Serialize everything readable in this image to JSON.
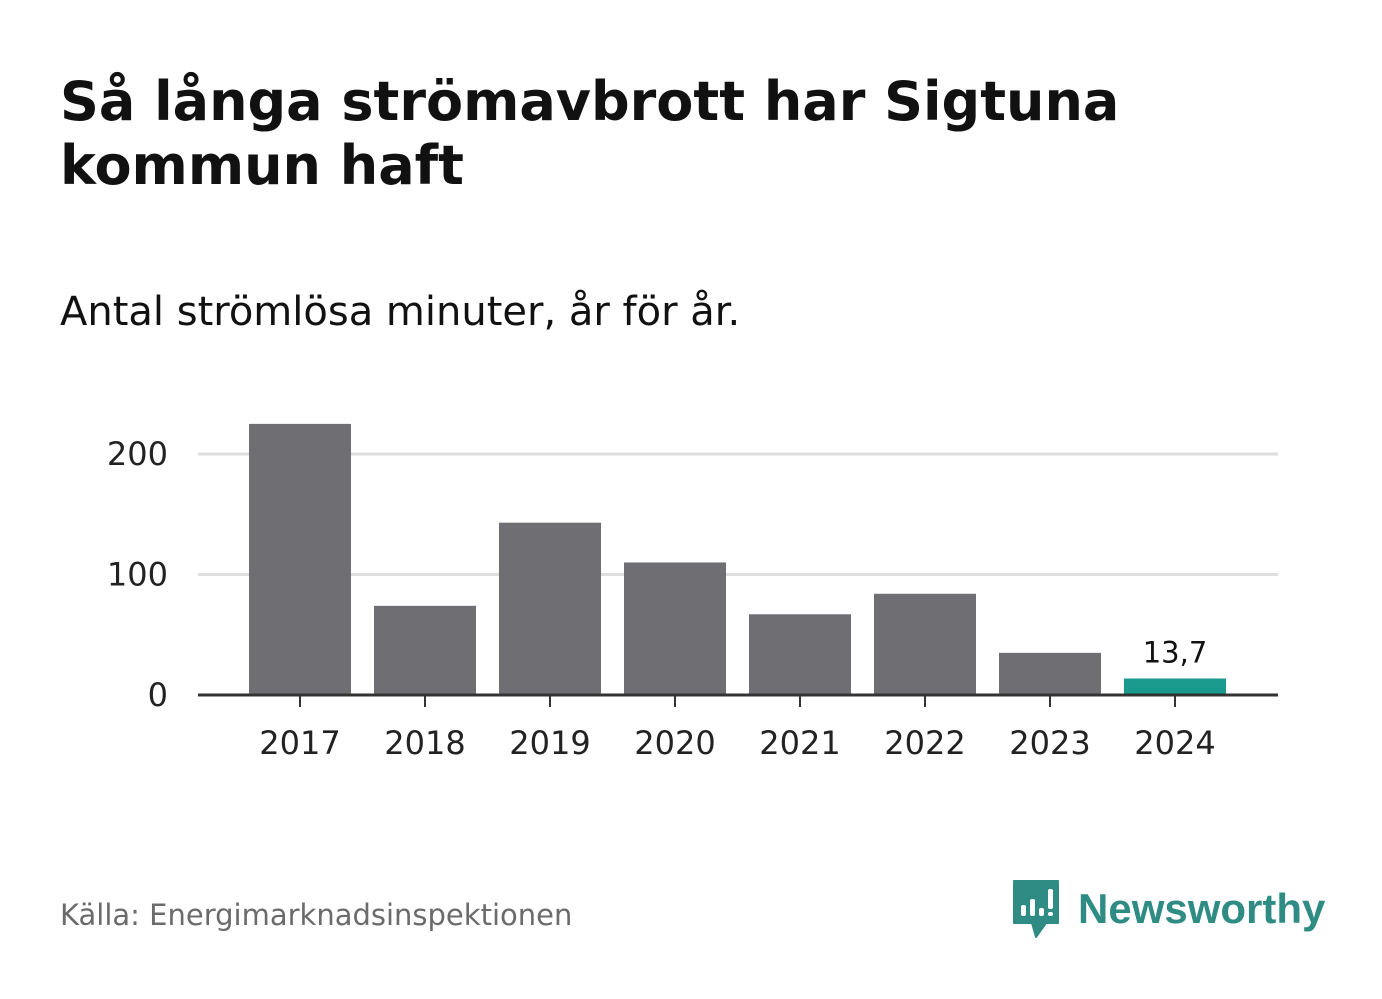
{
  "title": "Så långa strömavbrott har Sigtuna kommun haft",
  "subtitle": "Antal strömlösa minuter, år för år.",
  "source": "Källa: Energimarknadsinspektionen",
  "brand": {
    "name": "Newsworthy",
    "icon": "newsworthy-logo-icon",
    "color": "#2f8c84"
  },
  "colors": {
    "bar": "#6f6e73",
    "highlight": "#1a9a8d",
    "grid": "#dedede",
    "axis": "#333333"
  },
  "chart_data": {
    "type": "bar",
    "categories": [
      "2017",
      "2018",
      "2019",
      "2020",
      "2021",
      "2022",
      "2023",
      "2024"
    ],
    "values": [
      225,
      74,
      143,
      110,
      67,
      84,
      35,
      13.7
    ],
    "highlight_index": 7,
    "data_labels": [
      {
        "index": 7,
        "text": "13,7"
      }
    ],
    "yticks": [
      0,
      100,
      200
    ],
    "ylim": [
      0,
      230
    ],
    "grid": true,
    "legend": "none",
    "title": "Så långa strömavbrott har Sigtuna kommun haft",
    "subtitle": "Antal strömlösa minuter, år för år."
  }
}
